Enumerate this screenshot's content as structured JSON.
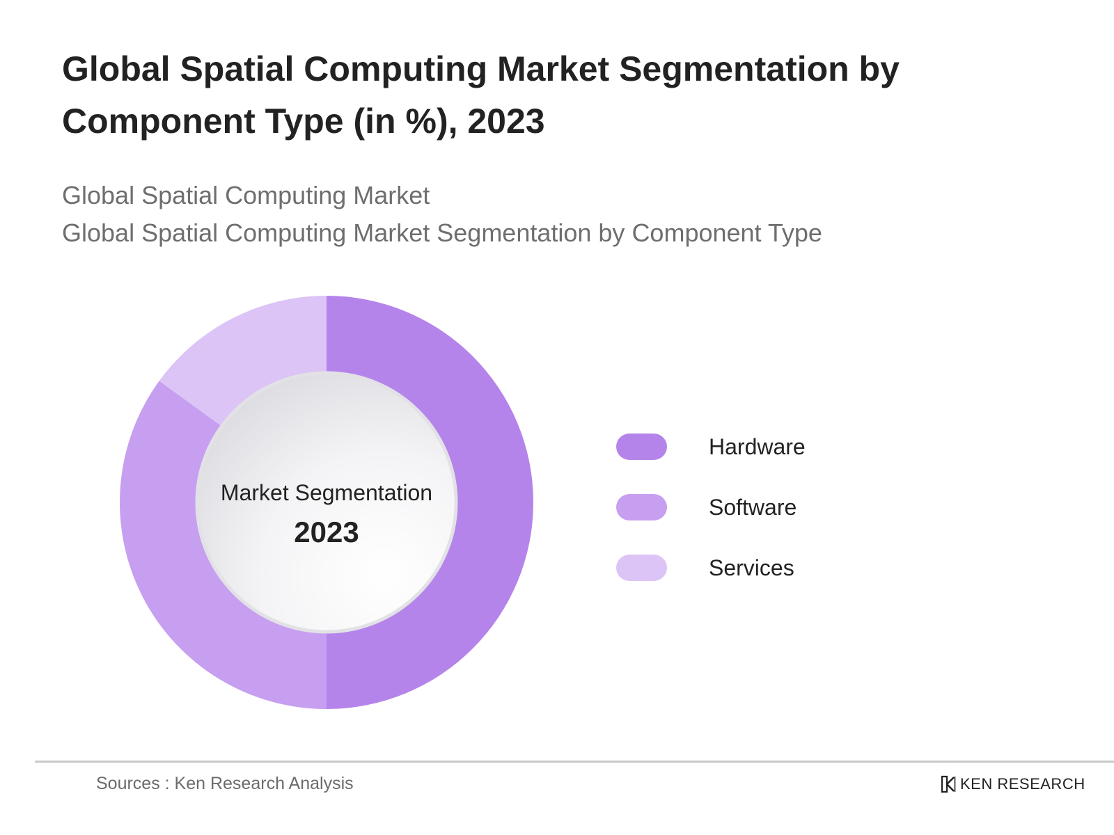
{
  "title": "Global Spatial Computing Market Segmentation by Component Type (in %), 2023",
  "subtitle_1": "Global Spatial Computing Market",
  "subtitle_2": "Global Spatial Computing Market Segmentation by Component Type",
  "center_label": {
    "line1": "Market Segmentation",
    "line2": "2023"
  },
  "footer": {
    "source": "Sources : Ken Research Analysis",
    "brand": "KEN RESEARCH"
  },
  "chart_data": {
    "type": "pie",
    "donut": true,
    "title": "Global Spatial Computing Market Segmentation by Component Type (in %), 2023",
    "categories": [
      "Hardware",
      "Software",
      "Services"
    ],
    "values": [
      50,
      35,
      15
    ],
    "colors": [
      "#b584eb",
      "#c79ff0",
      "#dcc4f6"
    ],
    "legend_position": "right"
  }
}
